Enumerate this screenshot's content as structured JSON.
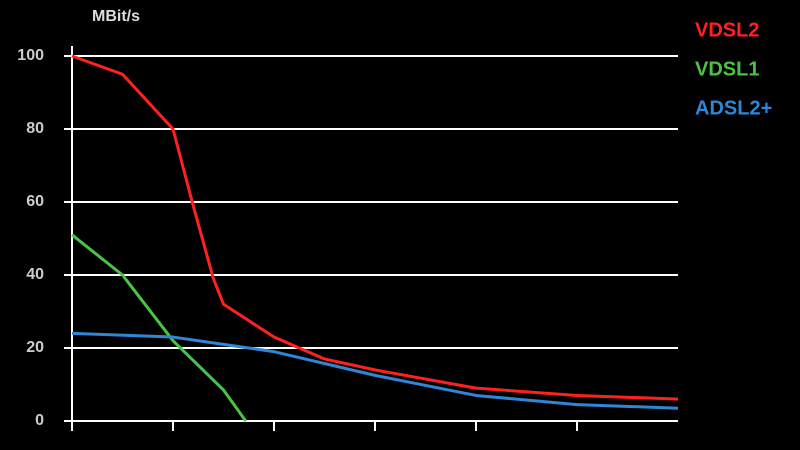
{
  "chart_data": {
    "type": "line",
    "y_label": "MBit/s",
    "series": [
      {
        "name": "VDSL2",
        "color": "#ff2020",
        "x": [
          0,
          0.5,
          1,
          1.2,
          1.4,
          1.5,
          2,
          2.5,
          3,
          4,
          5,
          6
        ],
        "values": [
          100,
          95,
          80,
          59,
          39,
          32,
          23,
          17,
          14,
          9,
          7,
          6
        ]
      },
      {
        "name": "VDSL1",
        "color": "#4cc244",
        "x": [
          0,
          0.5,
          1,
          1.5,
          1.72
        ],
        "values": [
          51,
          40,
          22,
          8.5,
          0
        ]
      },
      {
        "name": "ADSL2+",
        "color": "#2f86d6",
        "x": [
          0,
          1,
          1.5,
          2,
          3,
          4,
          5,
          6
        ],
        "values": [
          24,
          23,
          21,
          19,
          12.5,
          7,
          4.5,
          3.5
        ]
      }
    ],
    "xlim": [
      0,
      6
    ],
    "xticks": [
      0,
      1,
      2,
      3,
      4,
      5
    ],
    "ylim": [
      0,
      100
    ],
    "yticks": [
      0,
      20,
      40,
      60,
      80,
      100
    ],
    "grid": true,
    "legend": "top-right"
  }
}
